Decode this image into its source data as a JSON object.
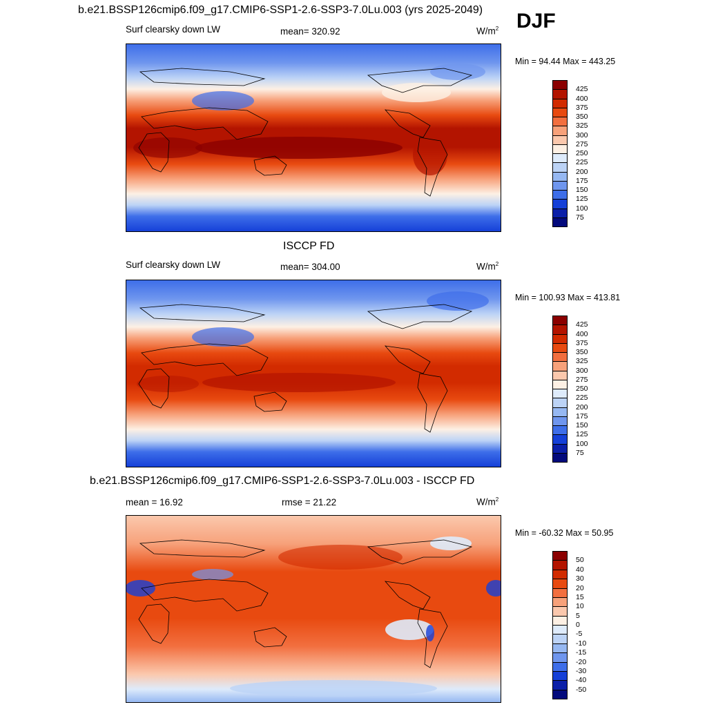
{
  "season": "DJF",
  "panels": [
    {
      "title": "b.e21.BSSP126cmip6.f09_g17.CMIP6-SSP1-2.6-SSP3-7.0Lu.003 (yrs 2025-2049)",
      "left": "Surf clearsky down LW",
      "center": "mean= 320.92",
      "units": "W/m",
      "units_sup": "2",
      "minmax": "Min =  94.44 Max = 443.25",
      "colorbar_labels": [
        "425",
        "400",
        "375",
        "350",
        "325",
        "300",
        "275",
        "250",
        "225",
        "200",
        "175",
        "150",
        "125",
        "100",
        "75"
      ],
      "colors": [
        "#8b0000",
        "#b31400",
        "#d22b00",
        "#e84a10",
        "#f26f3f",
        "#f7a17a",
        "#fbc8ad",
        "#fdf0e4",
        "#deebfb",
        "#bcd3f6",
        "#96b8f2",
        "#6f96ee",
        "#3e6ee9",
        "#1540d8",
        "#0b1fa8",
        "#030a7c"
      ]
    },
    {
      "title": "ISCCP FD",
      "left": "Surf clearsky down LW",
      "center": "mean= 304.00",
      "units": "W/m",
      "units_sup": "2",
      "minmax": "Min = 100.93 Max = 413.81",
      "colorbar_labels": [
        "425",
        "400",
        "375",
        "350",
        "325",
        "300",
        "275",
        "250",
        "225",
        "200",
        "175",
        "150",
        "125",
        "100",
        "75"
      ],
      "colors": [
        "#8b0000",
        "#b31400",
        "#d22b00",
        "#e84a10",
        "#f26f3f",
        "#f7a17a",
        "#fbc8ad",
        "#fdf0e4",
        "#deebfb",
        "#bcd3f6",
        "#96b8f2",
        "#6f96ee",
        "#3e6ee9",
        "#1540d8",
        "#0b1fa8",
        "#030a7c"
      ]
    },
    {
      "title": "b.e21.BSSP126cmip6.f09_g17.CMIP6-SSP1-2.6-SSP3-7.0Lu.003 - ISCCP FD",
      "left": "mean =  16.92",
      "center": "rmse =  21.22",
      "units": "W/m",
      "units_sup": "2",
      "minmax": "Min = -60.32 Max =  50.95",
      "colorbar_labels": [
        "50",
        "40",
        "30",
        "20",
        "15",
        "10",
        "5",
        "0",
        "-5",
        "-10",
        "-15",
        "-20",
        "-30",
        "-40",
        "-50"
      ],
      "colors": [
        "#8b0000",
        "#b31400",
        "#d22b00",
        "#e84a10",
        "#f26f3f",
        "#f7a17a",
        "#fbc8ad",
        "#fdf0e4",
        "#deebfb",
        "#bcd3f6",
        "#96b8f2",
        "#6f96ee",
        "#3e6ee9",
        "#1540d8",
        "#0b1fa8",
        "#030a7c"
      ]
    }
  ]
}
